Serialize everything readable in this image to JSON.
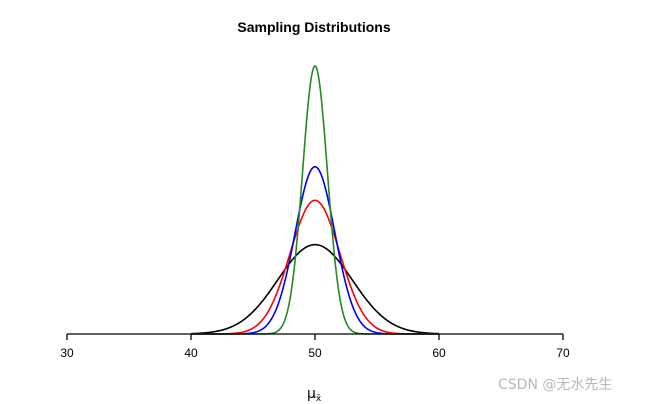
{
  "chart_data": {
    "type": "line",
    "title": "Sampling Distributions",
    "xlabel": "μ",
    "xlabel_subscript": "x̄",
    "ylabel": "",
    "xlim": [
      30,
      70
    ],
    "x_ticks": [
      30,
      40,
      50,
      60,
      70
    ],
    "x_tick_labels": [
      "30",
      "40",
      "50",
      "60",
      "70"
    ],
    "grid": false,
    "series": [
      {
        "name": "black",
        "color": "#000000",
        "mean": 50,
        "sd": 3.0,
        "range": [
          40,
          60
        ],
        "peak_density": 0.133
      },
      {
        "name": "red",
        "color": "#ff0000",
        "mean": 50,
        "sd": 2.0,
        "range": [
          40,
          60
        ],
        "peak_density": 0.199
      },
      {
        "name": "blue",
        "color": "#0000ff",
        "mean": 50,
        "sd": 1.6,
        "range": [
          40,
          60
        ],
        "peak_density": 0.249
      },
      {
        "name": "green",
        "color": "#228b22",
        "mean": 50,
        "sd": 1.0,
        "range": [
          40,
          60
        ],
        "peak_density": 0.399
      }
    ]
  },
  "watermark": "CSDN @无水先生"
}
